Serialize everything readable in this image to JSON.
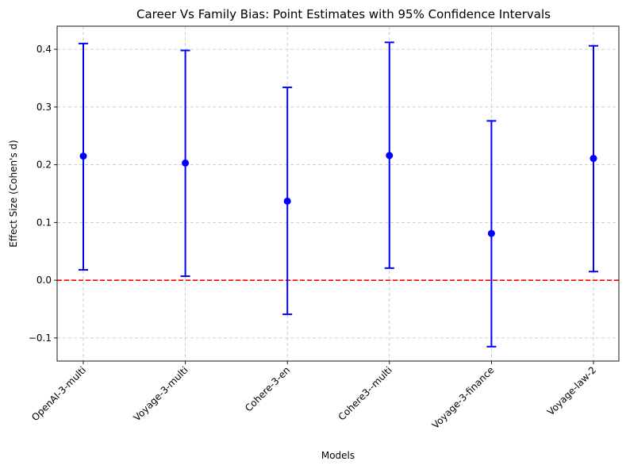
{
  "chart_data": {
    "type": "errorbar",
    "title": "Career Vs Family Bias: Point Estimates with 95% Confidence Intervals",
    "xlabel": "Models",
    "ylabel": "Effect Size (Cohen's d)",
    "categories": [
      "OpenAI-3-multi",
      "Voyage-3-multi",
      "Cohere-3-en",
      "Cohere3--multi",
      "Voyage-3-finance",
      "Voyage-law-2"
    ],
    "series": [
      {
        "estimate": [
          0.215,
          0.203,
          0.137,
          0.216,
          0.081,
          0.211
        ],
        "ci_lower": [
          0.018,
          0.007,
          -0.059,
          0.021,
          -0.115,
          0.015
        ],
        "ci_upper": [
          0.41,
          0.398,
          0.334,
          0.412,
          0.276,
          0.406
        ]
      }
    ],
    "ylim": [
      -0.14,
      0.44
    ],
    "yticks": [
      -0.1,
      0.0,
      0.1,
      0.2,
      0.3,
      0.4
    ],
    "ytick_labels": [
      "−0.1",
      "0.0",
      "0.1",
      "0.2",
      "0.3",
      "0.4"
    ],
    "reference_line": {
      "y": 0.0,
      "color": "#ff0000",
      "style": "dashed"
    },
    "marker_color": "#0000ff",
    "grid": true
  }
}
